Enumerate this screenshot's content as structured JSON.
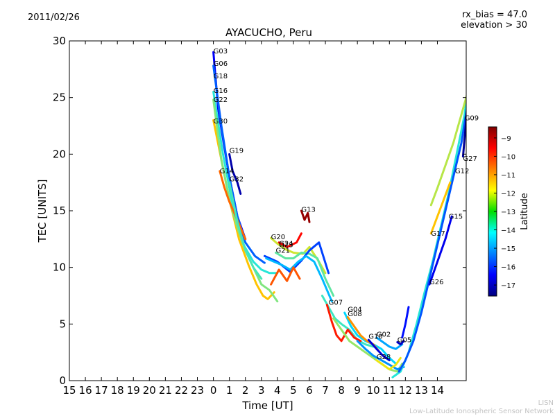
{
  "header": {
    "date": "2011/02/26",
    "rx_bias": "rx_bias = 47.0",
    "elevation": "elevation > 30"
  },
  "footer": {
    "line1": "LISN",
    "line2": "Low-Latitude Ionospheric Sensor Network"
  },
  "chart_data": {
    "type": "scatter",
    "title": "AYACUCHO, Peru",
    "xlabel": "Time [UT]",
    "ylabel": "TEC [UNITS]",
    "xlim": [
      15,
      39.8
    ],
    "ylim": [
      0,
      30
    ],
    "x_ticks": [
      15,
      16,
      17,
      18,
      19,
      20,
      21,
      22,
      23,
      24,
      25,
      26,
      27,
      28,
      29,
      30,
      31,
      32,
      33,
      34,
      35,
      36,
      37,
      38
    ],
    "x_tick_labels": [
      "15",
      "16",
      "17",
      "18",
      "19",
      "20",
      "21",
      "22",
      "23",
      "0",
      "1",
      "2",
      "3",
      "4",
      "5",
      "6",
      "7",
      "8",
      "9",
      "10",
      "11",
      "12",
      "13",
      "14"
    ],
    "y_ticks": [
      0,
      5,
      10,
      15,
      20,
      25,
      30
    ],
    "y_tick_labels": [
      "0",
      "5",
      "10",
      "15",
      "20",
      "25",
      "30"
    ],
    "grid": false,
    "colorbar": {
      "label": "Latitude",
      "range": [
        -17.6,
        -8.4
      ],
      "ticks": [
        -9,
        -10,
        -11,
        -12,
        -13,
        -14,
        -15,
        -16,
        -17
      ],
      "tick_labels": [
        "−9",
        "−10",
        "−11",
        "−12",
        "−13",
        "−14",
        "−15",
        "−16",
        "−17"
      ]
    },
    "annotations": [
      {
        "text": "G03",
        "x": 24.0,
        "y": 28.9
      },
      {
        "text": "G06",
        "x": 24.0,
        "y": 27.8
      },
      {
        "text": "G18",
        "x": 24.0,
        "y": 26.7
      },
      {
        "text": "G16",
        "x": 24.0,
        "y": 25.4
      },
      {
        "text": "G22",
        "x": 24.0,
        "y": 24.6
      },
      {
        "text": "G30",
        "x": 24.0,
        "y": 22.7
      },
      {
        "text": "G19",
        "x": 25.0,
        "y": 20.1
      },
      {
        "text": "G14",
        "x": 24.4,
        "y": 18.3
      },
      {
        "text": "G32",
        "x": 25.0,
        "y": 17.6
      },
      {
        "text": "G13",
        "x": 29.5,
        "y": 14.9
      },
      {
        "text": "G20",
        "x": 27.6,
        "y": 12.5
      },
      {
        "text": "G24",
        "x": 28.1,
        "y": 11.9
      },
      {
        "text": "G23",
        "x": 28.1,
        "y": 11.8
      },
      {
        "text": "G21",
        "x": 27.9,
        "y": 11.3
      },
      {
        "text": "G07",
        "x": 31.2,
        "y": 6.7
      },
      {
        "text": "G04",
        "x": 32.4,
        "y": 6.1
      },
      {
        "text": "G08",
        "x": 32.4,
        "y": 5.7
      },
      {
        "text": "G02",
        "x": 34.2,
        "y": 3.9
      },
      {
        "text": "G10",
        "x": 33.7,
        "y": 3.7
      },
      {
        "text": "G05",
        "x": 35.5,
        "y": 3.4
      },
      {
        "text": "G28",
        "x": 34.2,
        "y": 1.9
      },
      {
        "text": "G17",
        "x": 37.6,
        "y": 12.8
      },
      {
        "text": "G15",
        "x": 38.7,
        "y": 14.3
      },
      {
        "text": "G26",
        "x": 37.5,
        "y": 8.5
      },
      {
        "text": "G12",
        "x": 39.1,
        "y": 18.3
      },
      {
        "text": "G27",
        "x": 39.6,
        "y": 19.4
      },
      {
        "text": "G09",
        "x": 39.7,
        "y": 23.0
      }
    ],
    "series": [
      {
        "lat": -16.5,
        "x": [
          24.0,
          24.3,
          24.7,
          25.0,
          25.5,
          26.0
        ],
        "y": [
          29.0,
          24.0,
          20.5,
          18.0,
          14.5,
          12.5
        ]
      },
      {
        "lat": -15.5,
        "x": [
          24.0,
          24.5,
          25.0,
          25.5,
          26.0,
          26.6,
          27.2
        ],
        "y": [
          27.8,
          22.5,
          18.0,
          14.5,
          12.2,
          11.0,
          10.4
        ]
      },
      {
        "lat": -13.8,
        "x": [
          24.0,
          24.6,
          25.2,
          25.8,
          26.5,
          27.0,
          27.5,
          28.0
        ],
        "y": [
          25.5,
          20.0,
          15.5,
          12.2,
          10.5,
          9.8,
          9.5,
          9.5
        ]
      },
      {
        "lat": -11.5,
        "x": [
          24.0,
          24.5,
          25.0,
          25.6,
          26.2,
          26.7,
          27.1,
          27.4,
          27.8
        ],
        "y": [
          23.0,
          19.5,
          16.0,
          12.5,
          10.2,
          8.5,
          7.5,
          7.2,
          7.8
        ]
      },
      {
        "lat": -13.0,
        "x": [
          24.0,
          24.5,
          25.0,
          25.5,
          26.0,
          26.5,
          27.0,
          27.5,
          28.0
        ],
        "y": [
          24.8,
          19.5,
          16.0,
          13.5,
          11.5,
          10.0,
          8.5,
          8.0,
          7.0
        ]
      },
      {
        "lat": -17.2,
        "x": [
          25.0,
          25.2,
          25.5,
          25.7
        ],
        "y": [
          20.0,
          18.5,
          17.5,
          16.5
        ]
      },
      {
        "lat": -10.6,
        "x": [
          24.4,
          24.7,
          25.0,
          25.4,
          25.7,
          26.0
        ],
        "y": [
          18.5,
          17.0,
          15.8,
          14.5,
          13.5,
          12.5
        ]
      },
      {
        "lat": -13.5,
        "x": [
          25.0,
          25.5,
          26.0,
          26.5,
          27.0
        ],
        "y": [
          17.5,
          14.0,
          11.5,
          10.0,
          9.0
        ]
      },
      {
        "lat": -8.6,
        "x": [
          29.5,
          29.7,
          29.9,
          30.0
        ],
        "y": [
          15.0,
          14.2,
          14.8,
          14.0
        ]
      },
      {
        "lat": -12.3,
        "x": [
          27.6,
          28.0,
          28.5,
          29.0,
          29.6,
          30.0,
          30.6,
          31.0
        ],
        "y": [
          12.6,
          12.1,
          11.6,
          11.3,
          11.2,
          11.8,
          10.5,
          9.5
        ]
      },
      {
        "lat": -9.6,
        "x": [
          28.1,
          28.6,
          29.2,
          29.5
        ],
        "y": [
          12.2,
          11.8,
          12.2,
          13.0
        ]
      },
      {
        "lat": -13.3,
        "x": [
          27.9,
          28.5,
          29.0,
          29.5,
          30.0,
          30.5,
          31.0,
          31.5
        ],
        "y": [
          11.3,
          10.8,
          10.8,
          11.3,
          11.2,
          10.8,
          9.0,
          7.5
        ]
      },
      {
        "lat": -15.8,
        "x": [
          27.2,
          28.0,
          28.8,
          29.5,
          30.0,
          30.6,
          31.2
        ],
        "y": [
          11.0,
          10.5,
          9.6,
          10.6,
          11.5,
          12.2,
          9.5
        ]
      },
      {
        "lat": -14.6,
        "x": [
          27.3,
          27.8,
          28.3,
          28.8,
          29.3,
          29.8,
          30.3,
          30.8,
          31.4
        ],
        "y": [
          10.8,
          10.5,
          10.2,
          9.8,
          10.5,
          11.0,
          10.5,
          9.0,
          7.0
        ]
      },
      {
        "lat": -10.4,
        "x": [
          27.6,
          28.1,
          28.6,
          29.0,
          29.4
        ],
        "y": [
          8.5,
          9.8,
          8.8,
          10.0,
          9.0
        ]
      },
      {
        "lat": -13.6,
        "x": [
          30.8,
          31.2,
          31.6,
          32.0,
          32.5,
          33.0,
          33.5,
          34.0
        ],
        "y": [
          7.5,
          6.5,
          5.5,
          5.0,
          4.5,
          3.6,
          3.2,
          3.0
        ]
      },
      {
        "lat": -9.8,
        "x": [
          31.1,
          31.4,
          31.7,
          32.0,
          32.4,
          32.8,
          33.2
        ],
        "y": [
          6.7,
          5.2,
          4.0,
          3.5,
          4.5,
          3.8,
          3.5
        ]
      },
      {
        "lat": -14.3,
        "x": [
          32.2,
          32.6,
          33.0,
          33.5,
          34.0,
          34.5,
          35.0,
          35.4
        ],
        "y": [
          6.0,
          4.8,
          4.0,
          3.5,
          3.2,
          2.8,
          2.0,
          1.5
        ]
      },
      {
        "lat": -11.0,
        "x": [
          32.4,
          32.8,
          33.2,
          33.6,
          34.0,
          34.4
        ],
        "y": [
          5.6,
          4.8,
          4.0,
          3.5,
          3.2,
          2.5
        ]
      },
      {
        "lat": -12.8,
        "x": [
          31.5,
          32.0,
          32.5,
          33.0,
          33.5,
          34.0,
          34.5,
          35.0,
          35.5,
          35.8
        ],
        "y": [
          5.5,
          4.5,
          3.5,
          3.0,
          2.5,
          2.0,
          1.5,
          1.0,
          0.8,
          1.5
        ]
      },
      {
        "lat": -15.0,
        "x": [
          33.0,
          33.5,
          34.0,
          34.5,
          35.0,
          35.5,
          35.9
        ],
        "y": [
          3.5,
          2.8,
          2.2,
          1.8,
          1.4,
          1.0,
          1.2
        ]
      },
      {
        "lat": -16.8,
        "x": [
          33.7,
          34.2,
          34.6,
          35.0
        ],
        "y": [
          3.6,
          2.8,
          2.2,
          1.8
        ]
      },
      {
        "lat": -14.8,
        "x": [
          34.2,
          34.6,
          35.0,
          35.4,
          35.8
        ],
        "y": [
          3.8,
          3.4,
          3.0,
          2.8,
          3.2
        ]
      },
      {
        "lat": -12.0,
        "x": [
          34.2,
          34.6,
          35.0,
          35.4,
          35.7
        ],
        "y": [
          1.8,
          1.4,
          1.0,
          1.4,
          2.0
        ]
      },
      {
        "lat": -17.0,
        "x": [
          35.5,
          35.7,
          35.9
        ],
        "y": [
          3.4,
          3.2,
          3.5
        ]
      },
      {
        "lat": -13.8,
        "x": [
          35.2,
          35.7,
          36.2,
          36.7,
          37.2,
          37.7,
          38.2,
          38.7,
          39.2,
          39.7,
          39.9
        ],
        "y": [
          0.3,
          0.8,
          2.5,
          5.0,
          7.8,
          10.5,
          13.5,
          16.5,
          20.0,
          23.5,
          25.8
        ]
      },
      {
        "lat": -15.6,
        "x": [
          35.6,
          36.0,
          36.5,
          37.0,
          37.5,
          38.0,
          38.5,
          39.0,
          39.5,
          39.9
        ],
        "y": [
          0.8,
          1.8,
          3.5,
          6.0,
          9.0,
          12.0,
          15.0,
          18.0,
          21.0,
          24.5
        ]
      },
      {
        "lat": -12.5,
        "x": [
          37.6,
          38.0,
          38.5,
          39.0,
          39.5,
          39.9
        ],
        "y": [
          15.5,
          17.0,
          19.0,
          21.0,
          23.5,
          25.5
        ]
      },
      {
        "lat": -11.5,
        "x": [
          37.6,
          38.0,
          38.4,
          38.8
        ],
        "y": [
          13.0,
          14.5,
          16.0,
          17.5
        ]
      },
      {
        "lat": -16.6,
        "x": [
          37.5,
          38.0,
          38.5,
          38.9
        ],
        "y": [
          8.5,
          10.5,
          12.5,
          14.5
        ]
      },
      {
        "lat": -17.4,
        "x": [
          39.6,
          39.8,
          39.9
        ],
        "y": [
          19.8,
          23.0,
          25.0
        ]
      },
      {
        "lat": -16.3,
        "x": [
          35.8,
          36.0,
          36.2
        ],
        "y": [
          3.8,
          5.0,
          6.5
        ]
      }
    ]
  }
}
